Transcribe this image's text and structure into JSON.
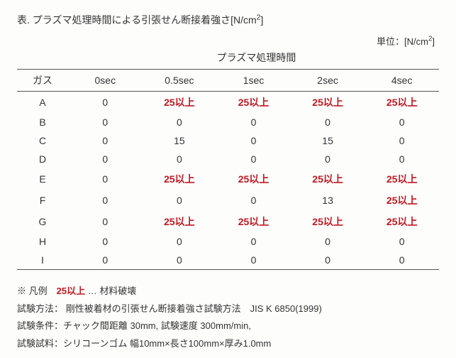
{
  "title_prefix": "表. プラズマ処理時間による引張せん断接着強さ[N/cm",
  "title_suffix": "]",
  "unit_prefix": "単位：[N/cm",
  "unit_suffix": "]",
  "super_header": "プラズマ処理時間",
  "columns": [
    "ガス",
    "0sec",
    "0.5sec",
    "1sec",
    "2sec",
    "4sec"
  ],
  "rows": [
    {
      "gas": "A",
      "cells": [
        {
          "v": "0",
          "hl": false
        },
        {
          "v": "25以上",
          "hl": true
        },
        {
          "v": "25以上",
          "hl": true
        },
        {
          "v": "25以上",
          "hl": true
        },
        {
          "v": "25以上",
          "hl": true
        }
      ]
    },
    {
      "gas": "B",
      "cells": [
        {
          "v": "0",
          "hl": false
        },
        {
          "v": "0",
          "hl": false
        },
        {
          "v": "0",
          "hl": false
        },
        {
          "v": "0",
          "hl": false
        },
        {
          "v": "0",
          "hl": false
        }
      ]
    },
    {
      "gas": "C",
      "cells": [
        {
          "v": "0",
          "hl": false
        },
        {
          "v": "15",
          "hl": false
        },
        {
          "v": "0",
          "hl": false
        },
        {
          "v": "15",
          "hl": false
        },
        {
          "v": "0",
          "hl": false
        }
      ]
    },
    {
      "gas": "D",
      "cells": [
        {
          "v": "0",
          "hl": false
        },
        {
          "v": "0",
          "hl": false
        },
        {
          "v": "0",
          "hl": false
        },
        {
          "v": "0",
          "hl": false
        },
        {
          "v": "0",
          "hl": false
        }
      ]
    },
    {
      "gas": "E",
      "cells": [
        {
          "v": "0",
          "hl": false
        },
        {
          "v": "25以上",
          "hl": true
        },
        {
          "v": "25以上",
          "hl": true
        },
        {
          "v": "25以上",
          "hl": true
        },
        {
          "v": "25以上",
          "hl": true
        }
      ]
    },
    {
      "gas": "F",
      "cells": [
        {
          "v": "0",
          "hl": false
        },
        {
          "v": "0",
          "hl": false
        },
        {
          "v": "0",
          "hl": false
        },
        {
          "v": "13",
          "hl": false
        },
        {
          "v": "25以上",
          "hl": true
        }
      ]
    },
    {
      "gas": "G",
      "cells": [
        {
          "v": "0",
          "hl": false
        },
        {
          "v": "25以上",
          "hl": true
        },
        {
          "v": "25以上",
          "hl": true
        },
        {
          "v": "25以上",
          "hl": true
        },
        {
          "v": "25以上",
          "hl": true
        }
      ]
    },
    {
      "gas": "H",
      "cells": [
        {
          "v": "0",
          "hl": false
        },
        {
          "v": "0",
          "hl": false
        },
        {
          "v": "0",
          "hl": false
        },
        {
          "v": "0",
          "hl": false
        },
        {
          "v": "0",
          "hl": false
        }
      ]
    },
    {
      "gas": "I",
      "cells": [
        {
          "v": "0",
          "hl": false
        },
        {
          "v": "0",
          "hl": false
        },
        {
          "v": "0",
          "hl": false
        },
        {
          "v": "0",
          "hl": false
        },
        {
          "v": "0",
          "hl": false
        }
      ]
    }
  ],
  "legend_prefix": "※ 凡例　",
  "legend_hl": "25以上",
  "legend_suffix": " … 材料破壊",
  "note_method": "試験方法： 剛性被着材の引張せん断接着強さ試験方法　JIS K 6850(1999)",
  "note_cond": "試験条件：チャック間距離 30mm, 試験速度 300mm/min,",
  "note_sample": "試験試料：シリコーンゴム 幅10mm×長さ100mm×厚み1.0mm",
  "style": {
    "highlight_color": "#c21820",
    "text_color": "#333333",
    "border_color": "#555555",
    "background": "#fdfdfc"
  }
}
